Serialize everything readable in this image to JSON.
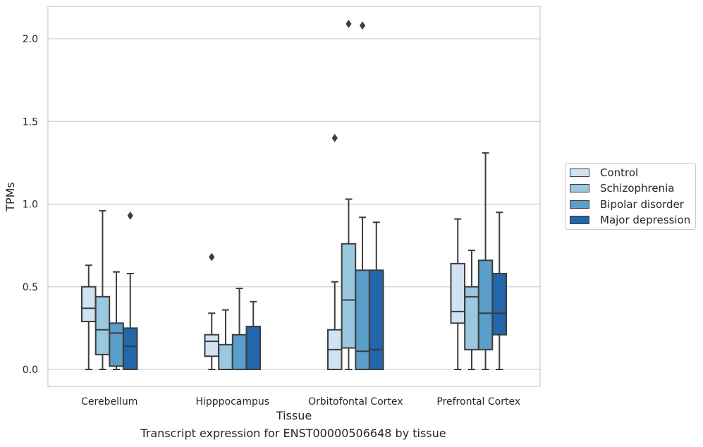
{
  "chart_data": {
    "type": "box",
    "title": "",
    "caption": "Transcript expression for ENST00000506648 by tissue",
    "xlabel": "Tissue",
    "ylabel": "TPMs",
    "ylim": [
      -0.1,
      2.2
    ],
    "yticks": [
      0.0,
      0.5,
      1.0,
      1.5,
      2.0
    ],
    "ytick_labels": [
      "0.0",
      "0.5",
      "1.0",
      "1.5",
      "2.0"
    ],
    "grid": "horizontal",
    "legend_position": "right",
    "categories": [
      "Cerebellum",
      "Hipppocampus",
      "Orbitofontal Cortex",
      "Prefrontal Cortex"
    ],
    "series": [
      {
        "name": "Control",
        "color": "#d1e2f2",
        "boxes": [
          {
            "whisker_low": 0.0,
            "q1": 0.29,
            "median": 0.37,
            "q3": 0.5,
            "whisker_high": 0.63,
            "outliers": []
          },
          {
            "whisker_low": 0.0,
            "q1": 0.08,
            "median": 0.17,
            "q3": 0.21,
            "whisker_high": 0.34,
            "outliers": [
              0.68
            ]
          },
          {
            "whisker_low": 0.0,
            "q1": 0.0,
            "median": 0.12,
            "q3": 0.24,
            "whisker_high": 0.53,
            "outliers": [
              1.4
            ]
          },
          {
            "whisker_low": 0.0,
            "q1": 0.28,
            "median": 0.35,
            "q3": 0.64,
            "whisker_high": 0.91,
            "outliers": []
          }
        ]
      },
      {
        "name": "Schizophrenia",
        "color": "#9ac8e0",
        "boxes": [
          {
            "whisker_low": 0.0,
            "q1": 0.09,
            "median": 0.24,
            "q3": 0.44,
            "whisker_high": 0.96,
            "outliers": []
          },
          {
            "whisker_low": 0.0,
            "q1": 0.0,
            "median": 0.0,
            "q3": 0.15,
            "whisker_high": 0.36,
            "outliers": []
          },
          {
            "whisker_low": 0.0,
            "q1": 0.13,
            "median": 0.42,
            "q3": 0.76,
            "whisker_high": 1.03,
            "outliers": [
              2.09
            ]
          },
          {
            "whisker_low": 0.0,
            "q1": 0.12,
            "median": 0.44,
            "q3": 0.5,
            "whisker_high": 0.72,
            "outliers": []
          }
        ]
      },
      {
        "name": "Bipolar disorder",
        "color": "#5a9ec9",
        "boxes": [
          {
            "whisker_low": 0.0,
            "q1": 0.02,
            "median": 0.22,
            "q3": 0.28,
            "whisker_high": 0.59,
            "outliers": []
          },
          {
            "whisker_low": 0.0,
            "q1": 0.0,
            "median": 0.0,
            "q3": 0.21,
            "whisker_high": 0.49,
            "outliers": []
          },
          {
            "whisker_low": 0.0,
            "q1": 0.0,
            "median": 0.11,
            "q3": 0.6,
            "whisker_high": 0.92,
            "outliers": [
              2.08
            ]
          },
          {
            "whisker_low": 0.0,
            "q1": 0.12,
            "median": 0.34,
            "q3": 0.66,
            "whisker_high": 1.31,
            "outliers": []
          }
        ]
      },
      {
        "name": "Major depression",
        "color": "#2266ac",
        "boxes": [
          {
            "whisker_low": 0.0,
            "q1": 0.0,
            "median": 0.14,
            "q3": 0.25,
            "whisker_high": 0.58,
            "outliers": [
              0.93
            ]
          },
          {
            "whisker_low": 0.0,
            "q1": 0.0,
            "median": 0.0,
            "q3": 0.26,
            "whisker_high": 0.41,
            "outliers": []
          },
          {
            "whisker_low": 0.0,
            "q1": 0.0,
            "median": 0.12,
            "q3": 0.6,
            "whisker_high": 0.89,
            "outliers": []
          },
          {
            "whisker_low": 0.0,
            "q1": 0.21,
            "median": 0.34,
            "q3": 0.58,
            "whisker_high": 0.95,
            "outliers": []
          }
        ]
      }
    ]
  }
}
